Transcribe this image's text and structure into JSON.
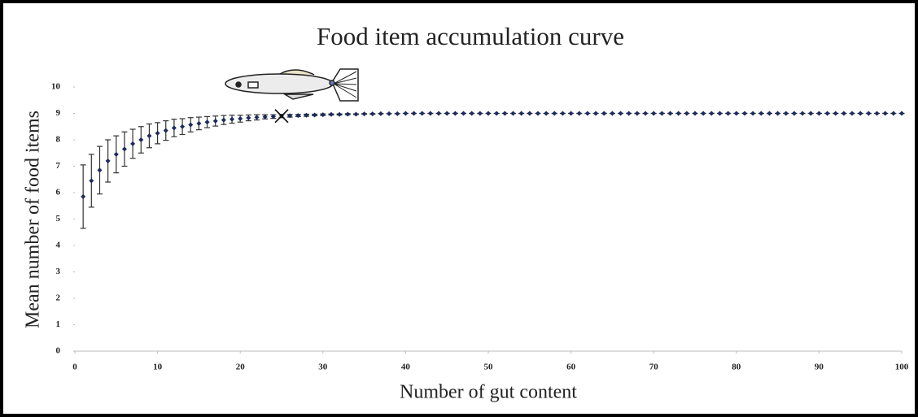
{
  "chart_data": {
    "type": "scatter",
    "title": "Food item accumulation curve",
    "x_label": "Number of gut content",
    "y_label": "Mean number of food items",
    "x": [
      1,
      2,
      3,
      4,
      5,
      6,
      7,
      8,
      9,
      10,
      11,
      12,
      13,
      14,
      15,
      16,
      17,
      18,
      19,
      20,
      21,
      22,
      23,
      24,
      25,
      26,
      27,
      28,
      29,
      30,
      31,
      32,
      33,
      34,
      35,
      36,
      37,
      38,
      39,
      40,
      41,
      42,
      43,
      44,
      45,
      46,
      47,
      48,
      49,
      50,
      51,
      52,
      53,
      54,
      55,
      56,
      57,
      58,
      59,
      60,
      61,
      62,
      63,
      64,
      65,
      66,
      67,
      68,
      69,
      70,
      71,
      72,
      73,
      74,
      75,
      76,
      77,
      78,
      79,
      80,
      81,
      82,
      83,
      84,
      85,
      86,
      87,
      88,
      89,
      90,
      91,
      92,
      93,
      94,
      95,
      96,
      97,
      98,
      99,
      100
    ],
    "values": [
      5.85,
      6.45,
      6.85,
      7.2,
      7.45,
      7.65,
      7.85,
      8,
      8.15,
      8.25,
      8.35,
      8.45,
      8.5,
      8.57,
      8.62,
      8.67,
      8.71,
      8.75,
      8.78,
      8.8,
      8.83,
      8.85,
      8.87,
      8.88,
      8.9,
      8.91,
      8.92,
      8.93,
      8.94,
      8.95,
      8.96,
      8.96,
      8.97,
      8.97,
      8.98,
      8.98,
      8.99,
      8.99,
      8.99,
      9,
      9,
      9,
      9,
      9,
      9,
      9,
      9,
      9,
      9,
      9,
      9,
      9,
      9,
      9,
      9,
      9,
      9,
      9,
      9,
      9,
      9,
      9,
      9,
      9,
      9,
      9,
      9,
      9,
      9,
      9,
      9,
      9,
      9,
      9,
      9,
      9,
      9,
      9,
      9,
      9,
      9,
      9,
      9,
      9,
      9,
      9,
      9,
      9,
      9,
      9,
      9,
      9,
      9,
      9,
      9,
      9,
      9,
      9,
      9,
      9
    ],
    "errors": [
      1.2,
      1,
      0.9,
      0.8,
      0.7,
      0.65,
      0.55,
      0.5,
      0.45,
      0.4,
      0.37,
      0.33,
      0.3,
      0.27,
      0.24,
      0.21,
      0.19,
      0.17,
      0.15,
      0.13,
      0.11,
      0.1,
      0.08,
      0.07,
      0.06,
      0.05,
      0.04,
      0.04,
      0.03,
      0.03,
      0.02,
      0.02,
      0.02,
      0.01,
      0.01,
      0.01,
      0,
      0,
      0,
      0,
      0,
      0,
      0,
      0,
      0,
      0,
      0,
      0,
      0,
      0,
      0,
      0,
      0,
      0,
      0,
      0,
      0,
      0,
      0,
      0,
      0,
      0,
      0,
      0,
      0,
      0,
      0,
      0,
      0,
      0,
      0,
      0,
      0,
      0,
      0,
      0,
      0,
      0,
      0,
      0,
      0,
      0,
      0,
      0,
      0,
      0,
      0,
      0,
      0,
      0,
      0,
      0,
      0,
      0,
      0,
      0,
      0,
      0,
      0,
      0
    ],
    "color": "#1c2a5c",
    "error_color": "#333333",
    "marked_point": {
      "x": 25,
      "y": 8.9
    },
    "xlim": [
      0,
      100
    ],
    "ylim": [
      0,
      10
    ],
    "xticks": [
      0,
      10,
      20,
      30,
      40,
      50,
      60,
      70,
      80,
      90,
      100
    ],
    "yticks": [
      0,
      1,
      2,
      3,
      4,
      5,
      6,
      7,
      8,
      9,
      10
    ],
    "grid": false
  }
}
